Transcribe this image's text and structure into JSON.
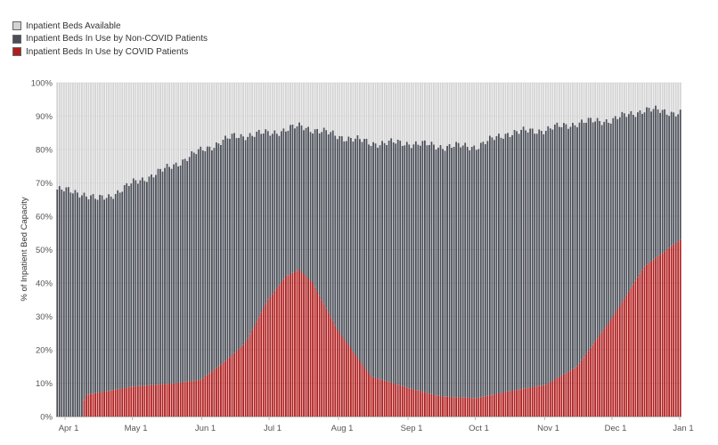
{
  "chart_data": {
    "type": "bar",
    "stacked": true,
    "ylabel": "% of Inpatient Bed Capacity",
    "xlabel": "",
    "ylim": [
      0,
      100
    ],
    "yticks": [
      "0%",
      "10%",
      "20%",
      "30%",
      "40%",
      "50%",
      "60%",
      "70%",
      "80%",
      "90%",
      "100%"
    ],
    "xtick_labels": [
      "Apr 1",
      "May 1",
      "Jun 1",
      "Jul 1",
      "Aug 1",
      "Sep 1",
      "Oct 1",
      "Nov 1",
      "Dec 1",
      "Jan 1"
    ],
    "x_start_date": "2020-03-28",
    "x_end_date": "2020-12-31",
    "legend": [
      {
        "name": "Inpatient Beds Available",
        "color": "#d3d3d3"
      },
      {
        "name": "Inpatient Beds In Use by Non-COVID Patients",
        "color": "#4a4e57"
      },
      {
        "name": "Inpatient Beds In Use by COVID Patients",
        "color": "#b01e1e"
      }
    ],
    "covid_pct_anchors": [
      [
        "2020-03-28",
        0
      ],
      [
        "2020-04-08",
        0
      ],
      [
        "2020-04-09",
        5
      ],
      [
        "2020-04-10",
        6.5
      ],
      [
        "2020-05-01",
        9
      ],
      [
        "2020-05-20",
        10
      ],
      [
        "2020-05-31",
        11
      ],
      [
        "2020-06-10",
        16
      ],
      [
        "2020-06-20",
        22
      ],
      [
        "2020-06-30",
        35
      ],
      [
        "2020-07-08",
        42
      ],
      [
        "2020-07-14",
        44
      ],
      [
        "2020-07-20",
        40
      ],
      [
        "2020-07-31",
        26
      ],
      [
        "2020-08-15",
        12
      ],
      [
        "2020-09-01",
        8.5
      ],
      [
        "2020-09-15",
        6
      ],
      [
        "2020-10-01",
        5.5
      ],
      [
        "2020-10-15",
        7.5
      ],
      [
        "2020-11-01",
        9.5
      ],
      [
        "2020-11-15",
        15
      ],
      [
        "2020-12-01",
        30
      ],
      [
        "2020-12-15",
        45
      ],
      [
        "2020-12-31",
        53
      ]
    ],
    "total_in_use_pct_anchors": [
      [
        "2020-03-28",
        68
      ],
      [
        "2020-04-08",
        67
      ],
      [
        "2020-04-15",
        65
      ],
      [
        "2020-04-20",
        66
      ],
      [
        "2020-05-01",
        70
      ],
      [
        "2020-05-15",
        74
      ],
      [
        "2020-06-01",
        80
      ],
      [
        "2020-06-15",
        84
      ],
      [
        "2020-07-01",
        85
      ],
      [
        "2020-07-15",
        87
      ],
      [
        "2020-08-01",
        84
      ],
      [
        "2020-08-15",
        82
      ],
      [
        "2020-09-01",
        82
      ],
      [
        "2020-09-15",
        81
      ],
      [
        "2020-10-01",
        81
      ],
      [
        "2020-10-15",
        85
      ],
      [
        "2020-11-01",
        86
      ],
      [
        "2020-11-15",
        88
      ],
      [
        "2020-12-01",
        89
      ],
      [
        "2020-12-15",
        92
      ],
      [
        "2020-12-31",
        91
      ]
    ]
  }
}
